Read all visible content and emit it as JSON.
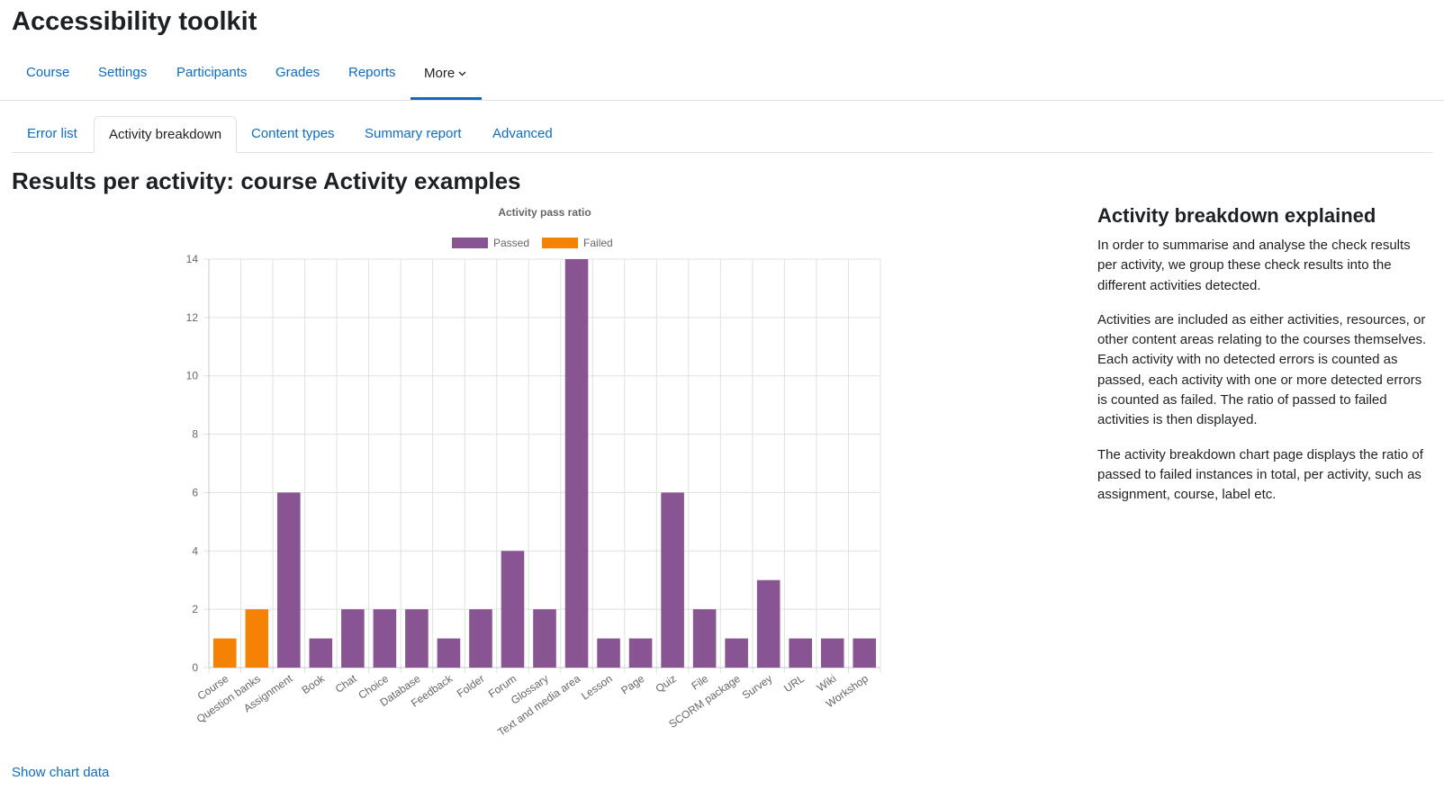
{
  "page": {
    "title": "Accessibility toolkit"
  },
  "primary_nav": {
    "items": [
      {
        "label": "Course"
      },
      {
        "label": "Settings"
      },
      {
        "label": "Participants"
      },
      {
        "label": "Grades"
      },
      {
        "label": "Reports"
      },
      {
        "label": "More"
      }
    ],
    "active": "More"
  },
  "secondary_tabs": {
    "items": [
      {
        "label": "Error list"
      },
      {
        "label": "Activity breakdown"
      },
      {
        "label": "Content types"
      },
      {
        "label": "Summary report"
      },
      {
        "label": "Advanced"
      }
    ],
    "active": "Activity breakdown"
  },
  "results_heading": "Results per activity: course Activity examples",
  "sidebar": {
    "heading": "Activity breakdown explained",
    "paragraphs": [
      "In order to summarise and analyse the check results per activity, we group these check results into the different activities detected.",
      "Activities are included as either activities, resources, or other content areas relating to the courses themselves. Each activity with no detected errors is counted as passed, each activity with one or more detected errors is counted as failed. The ratio of passed to failed activities is then displayed.",
      "The activity breakdown chart page displays the ratio of passed to failed instances in total, per activity, such as assignment, course, label etc."
    ]
  },
  "show_chart_data": "Show chart data",
  "colors": {
    "passed": "#885492",
    "failed": "#f48204",
    "link": "#0f6cbf"
  },
  "chart_data": {
    "type": "bar",
    "title": "Activity pass ratio",
    "stacked": true,
    "categories": [
      "Course",
      "Question banks",
      "Assignment",
      "Book",
      "Chat",
      "Choice",
      "Database",
      "Feedback",
      "Folder",
      "Forum",
      "Glossary",
      "Text and media area",
      "Lesson",
      "Page",
      "Quiz",
      "File",
      "SCORM package",
      "Survey",
      "URL",
      "Wiki",
      "Workshop"
    ],
    "series": [
      {
        "name": "Passed",
        "color": "#885492",
        "values": [
          0,
          0,
          6,
          1,
          2,
          2,
          2,
          1,
          2,
          4,
          2,
          14,
          1,
          1,
          6,
          2,
          1,
          3,
          1,
          1,
          1
        ]
      },
      {
        "name": "Failed",
        "color": "#f48204",
        "values": [
          1,
          2,
          0,
          0,
          0,
          0,
          0,
          0,
          0,
          0,
          0,
          0,
          0,
          0,
          0,
          0,
          0,
          0,
          0,
          0,
          0
        ]
      }
    ],
    "ylim": [
      0,
      14
    ],
    "yticks": [
      0,
      2,
      4,
      6,
      8,
      10,
      12,
      14
    ],
    "xlabel": "",
    "ylabel": "",
    "grid": true,
    "legend_position": "top"
  }
}
